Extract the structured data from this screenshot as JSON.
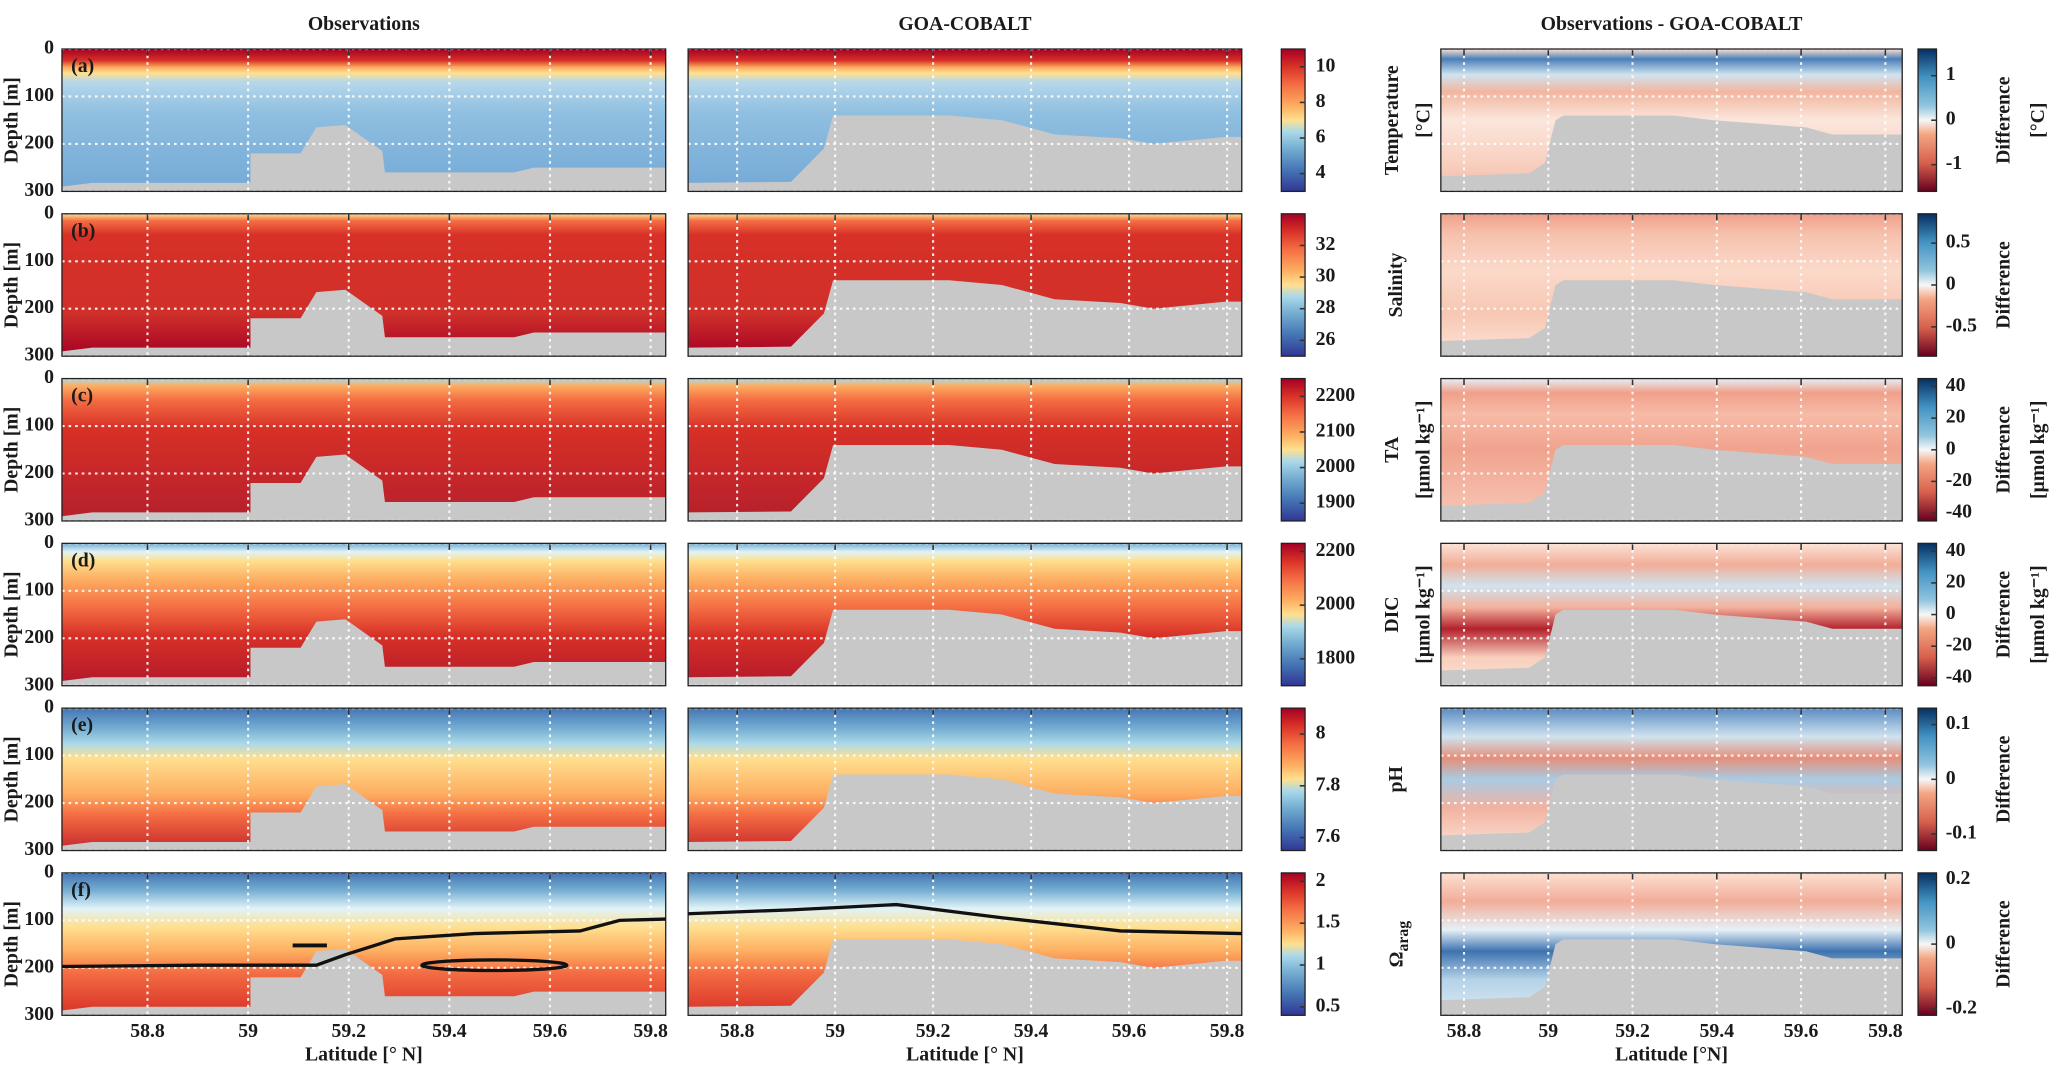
{
  "chart_data": {
    "type": "contour",
    "columns": [
      {
        "title": "Observations",
        "xlim": [
          58.63,
          59.83
        ]
      },
      {
        "title": "GOA-COBALT",
        "xlim": [
          58.7,
          59.83
        ]
      },
      {
        "title": "Observations - GOA-COBALT",
        "xlim": [
          58.745,
          59.84
        ]
      }
    ],
    "xlabel": "Latitude [° N]",
    "xlabel_diff": "Latitude [°N]",
    "ylabel": "Depth [m]",
    "xticks": [
      58.8,
      59,
      59.2,
      59.4,
      59.6,
      59.8
    ],
    "ylim": [
      0,
      300
    ],
    "yticks": [
      0,
      100,
      200,
      300
    ],
    "grid": true,
    "rows": [
      {
        "panel": "(a)",
        "variable": [
          "Temperature",
          "[°C]"
        ],
        "colorbar": {
          "lim": [
            3,
            11
          ],
          "ticks": [
            4,
            6,
            8,
            10
          ]
        },
        "diff_label": [
          "Difference",
          "[°C]"
        ],
        "diff_colorbar": {
          "lim": [
            -1.6,
            1.6
          ],
          "ticks": [
            -1,
            0,
            1
          ]
        }
      },
      {
        "panel": "(b)",
        "variable": [
          "Salinity"
        ],
        "colorbar": {
          "lim": [
            25,
            34
          ],
          "ticks": [
            26,
            28,
            30,
            32
          ]
        },
        "diff_label": [
          "Difference"
        ],
        "diff_colorbar": {
          "lim": [
            -0.85,
            0.85
          ],
          "ticks": [
            -0.5,
            0,
            0.5
          ]
        }
      },
      {
        "panel": "(c)",
        "variable": [
          "TA",
          "[μmol kg⁻¹]"
        ],
        "colorbar": {
          "lim": [
            1850,
            2250
          ],
          "ticks": [
            1900,
            2000,
            2100,
            2200
          ]
        },
        "diff_label": [
          "Difference",
          "[μmol kg⁻¹]"
        ],
        "diff_colorbar": {
          "lim": [
            -45,
            45
          ],
          "ticks": [
            -40,
            -20,
            0,
            20,
            40
          ]
        }
      },
      {
        "panel": "(d)",
        "variable": [
          "DIC",
          "[μmol kg⁻¹]"
        ],
        "colorbar": {
          "lim": [
            1700,
            2230
          ],
          "ticks": [
            1800,
            2000,
            2200
          ]
        },
        "diff_label": [
          "Difference",
          "[μmol kg⁻¹]"
        ],
        "diff_colorbar": {
          "lim": [
            -45,
            45
          ],
          "ticks": [
            -40,
            -20,
            0,
            20,
            40
          ]
        }
      },
      {
        "panel": "(e)",
        "variable": [
          "pH"
        ],
        "colorbar": {
          "lim": [
            7.55,
            8.1
          ],
          "ticks": [
            7.6,
            7.8,
            8
          ]
        },
        "diff_label": [
          "Difference"
        ],
        "diff_colorbar": {
          "lim": [
            -0.13,
            0.13
          ],
          "ticks": [
            -0.1,
            0,
            0.1
          ]
        }
      },
      {
        "panel": "(f)",
        "variable": [
          "Ω"
        ],
        "variable_subscript": "arag",
        "colorbar": {
          "lim": [
            0.4,
            2.1
          ],
          "ticks": [
            0.5,
            1,
            1.5,
            2
          ]
        },
        "diff_label": [
          "Difference"
        ],
        "diff_colorbar": {
          "lim": [
            -0.22,
            0.22
          ],
          "ticks": [
            -0.2,
            0,
            0.2
          ]
        }
      }
    ]
  }
}
